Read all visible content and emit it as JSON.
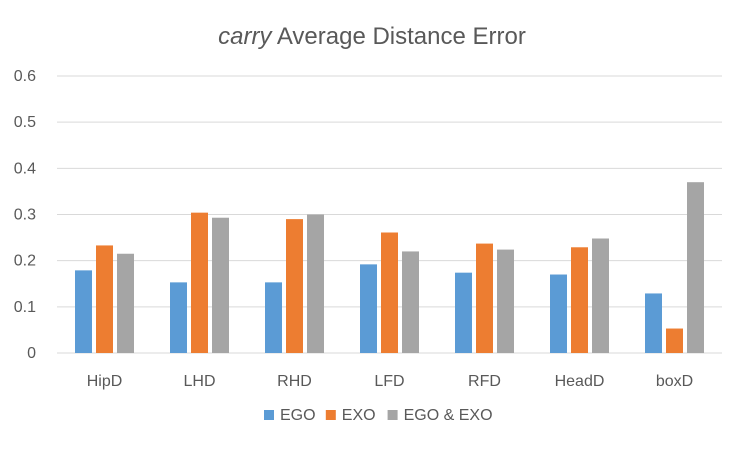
{
  "chart_data": {
    "type": "bar",
    "title_em": "carry",
    "title_rest": " Average Distance Error",
    "categories": [
      "HipD",
      "LHD",
      "RHD",
      "LFD",
      "RFD",
      "HeadD",
      "boxD"
    ],
    "series": [
      {
        "name": "EGO",
        "color": "#5b9bd5",
        "values": [
          0.179,
          0.153,
          0.153,
          0.192,
          0.174,
          0.17,
          0.129
        ]
      },
      {
        "name": "EXO",
        "color": "#ed7d31",
        "values": [
          0.233,
          0.304,
          0.29,
          0.261,
          0.237,
          0.229,
          0.053
        ]
      },
      {
        "name": "EGO & EXO",
        "color": "#a5a5a5",
        "values": [
          0.215,
          0.293,
          0.3,
          0.22,
          0.224,
          0.248,
          0.37
        ]
      }
    ],
    "ylim": [
      0,
      0.6
    ],
    "yticks": [
      "0",
      "0.1",
      "0.2",
      "0.3",
      "0.4",
      "0.5",
      "0.6"
    ],
    "grid": true,
    "legend_position": "bottom"
  }
}
